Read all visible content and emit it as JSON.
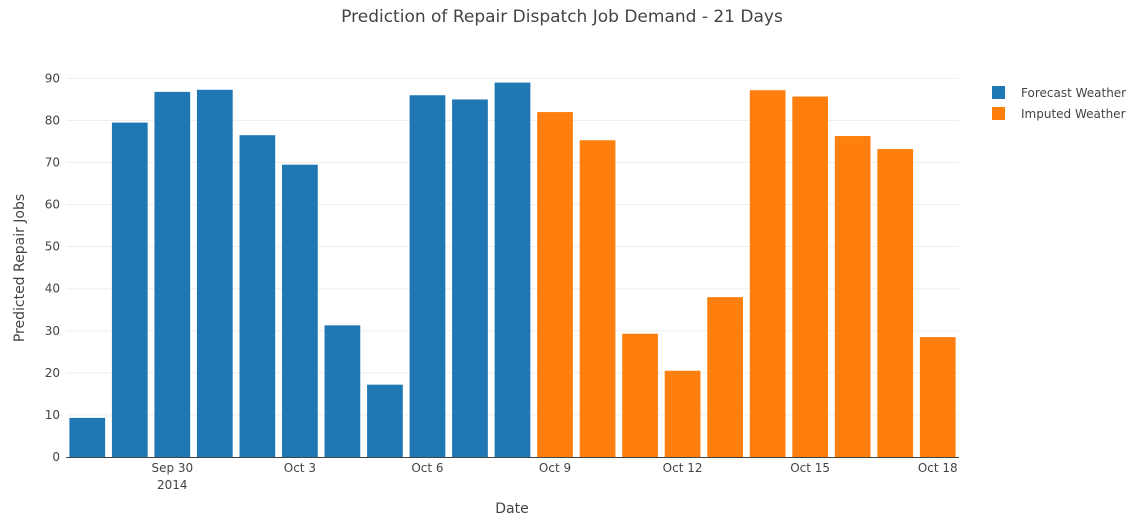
{
  "chart_data": {
    "type": "bar",
    "title": "Prediction of Repair Dispatch Job Demand - 21 Days",
    "xlabel": "Date",
    "ylabel": "Predicted Repair Jobs",
    "ylim": [
      0,
      92
    ],
    "yticks": [
      0,
      10,
      20,
      30,
      40,
      50,
      60,
      70,
      80,
      90
    ],
    "grid": true,
    "legend_position": "top-right",
    "x_start": "2014-09-28",
    "xticks": [
      {
        "date": "2014-09-30",
        "label": "Sep 30",
        "sublabel": "2014"
      },
      {
        "date": "2014-10-03",
        "label": "Oct 3",
        "sublabel": ""
      },
      {
        "date": "2014-10-06",
        "label": "Oct 6",
        "sublabel": ""
      },
      {
        "date": "2014-10-09",
        "label": "Oct 9",
        "sublabel": ""
      },
      {
        "date": "2014-10-12",
        "label": "Oct 12",
        "sublabel": ""
      },
      {
        "date": "2014-10-15",
        "label": "Oct 15",
        "sublabel": ""
      },
      {
        "date": "2014-10-18",
        "label": "Oct 18",
        "sublabel": ""
      }
    ],
    "series": [
      {
        "name": "Forecast Weather",
        "color": "#1f77b4",
        "x": [
          "2014-09-28",
          "2014-09-29",
          "2014-09-30",
          "2014-10-01",
          "2014-10-02",
          "2014-10-03",
          "2014-10-04",
          "2014-10-05",
          "2014-10-06",
          "2014-10-07",
          "2014-10-08"
        ],
        "values": [
          9.3,
          79.5,
          86.8,
          87.3,
          76.5,
          69.5,
          31.3,
          17.2,
          86.0,
          85.0,
          89.0
        ]
      },
      {
        "name": "Imputed Weather",
        "color": "#ff7f0e",
        "x": [
          "2014-10-09",
          "2014-10-10",
          "2014-10-11",
          "2014-10-12",
          "2014-10-13",
          "2014-10-14",
          "2014-10-15",
          "2014-10-16",
          "2014-10-17",
          "2014-10-18"
        ],
        "values": [
          82.0,
          75.3,
          29.3,
          20.5,
          38.0,
          87.2,
          85.7,
          76.3,
          73.2,
          28.5
        ]
      }
    ]
  }
}
